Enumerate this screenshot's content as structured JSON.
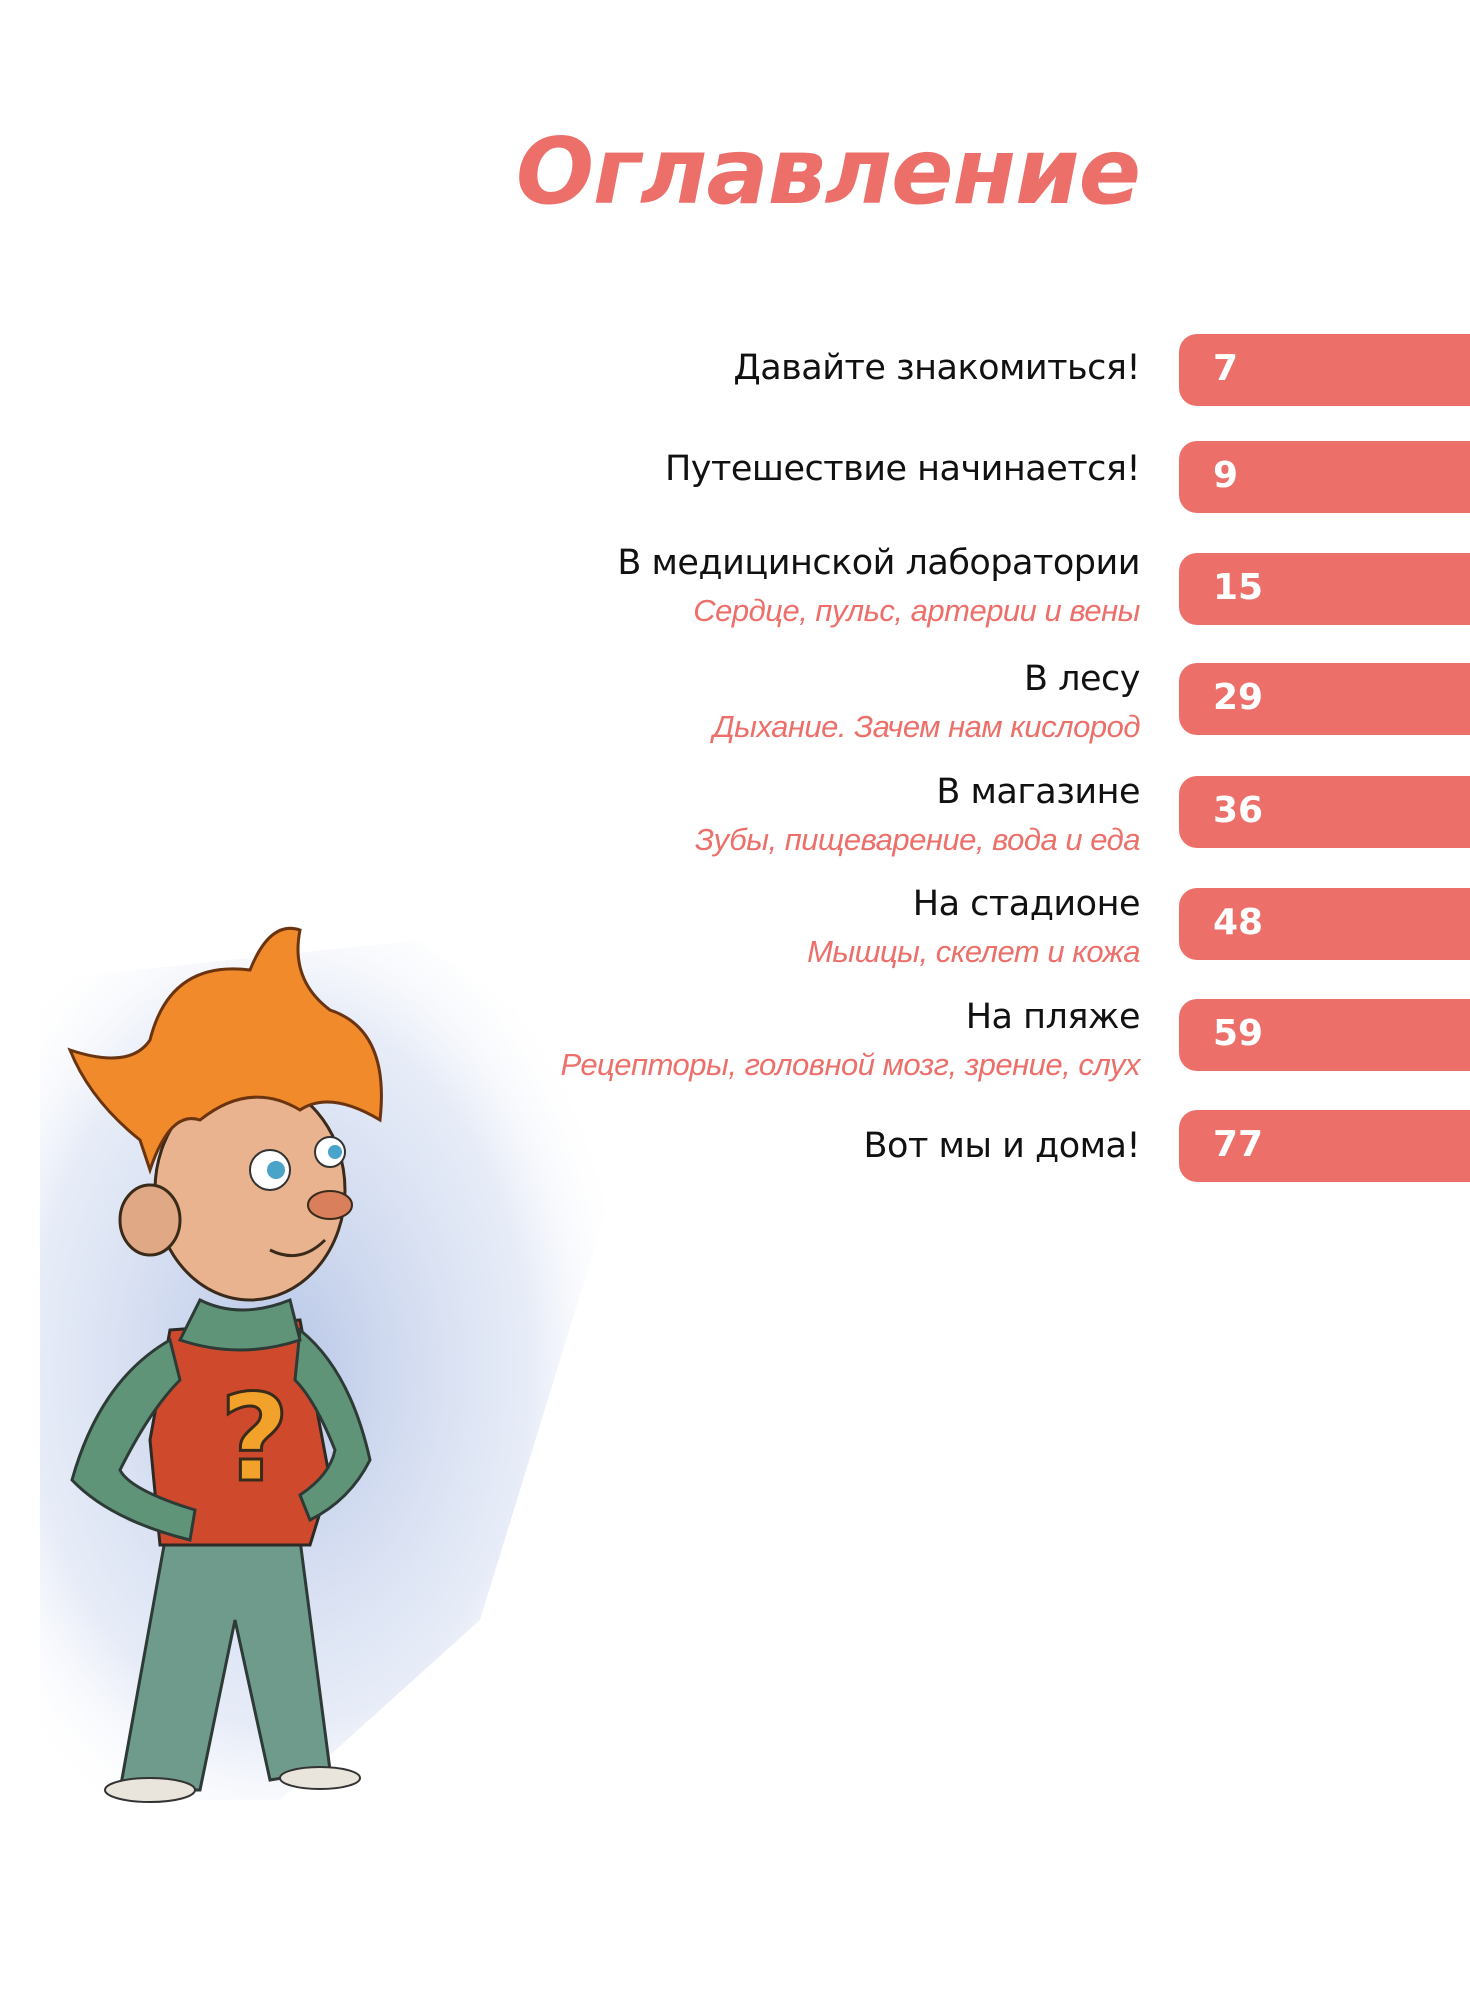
{
  "page_title": "Оглавление",
  "accent_color": "#ec6f6a",
  "toc": [
    {
      "title": "Давайте знакомиться!",
      "subtitle": null,
      "page": "7"
    },
    {
      "title": "Путешествие начинается!",
      "subtitle": null,
      "page": "9"
    },
    {
      "title": "В медицинской лаборатории",
      "subtitle": "Сердце, пульс, артерии и вены",
      "page": "15"
    },
    {
      "title": "В лесу",
      "subtitle": "Дыхание. Зачем нам кислород",
      "page": "29"
    },
    {
      "title": "В магазине",
      "subtitle": "Зубы, пищеварение, вода и еда",
      "page": "36"
    },
    {
      "title": "На стадионе",
      "subtitle": "Мышцы, скелет и кожа",
      "page": "48"
    },
    {
      "title": "На пляже",
      "subtitle": "Рецепторы, головной мозг, зрение, слух",
      "page": "59"
    },
    {
      "title": "Вот мы и дома!",
      "subtitle": null,
      "page": "77"
    }
  ],
  "illustration": "boy-with-question-mark-shirt"
}
